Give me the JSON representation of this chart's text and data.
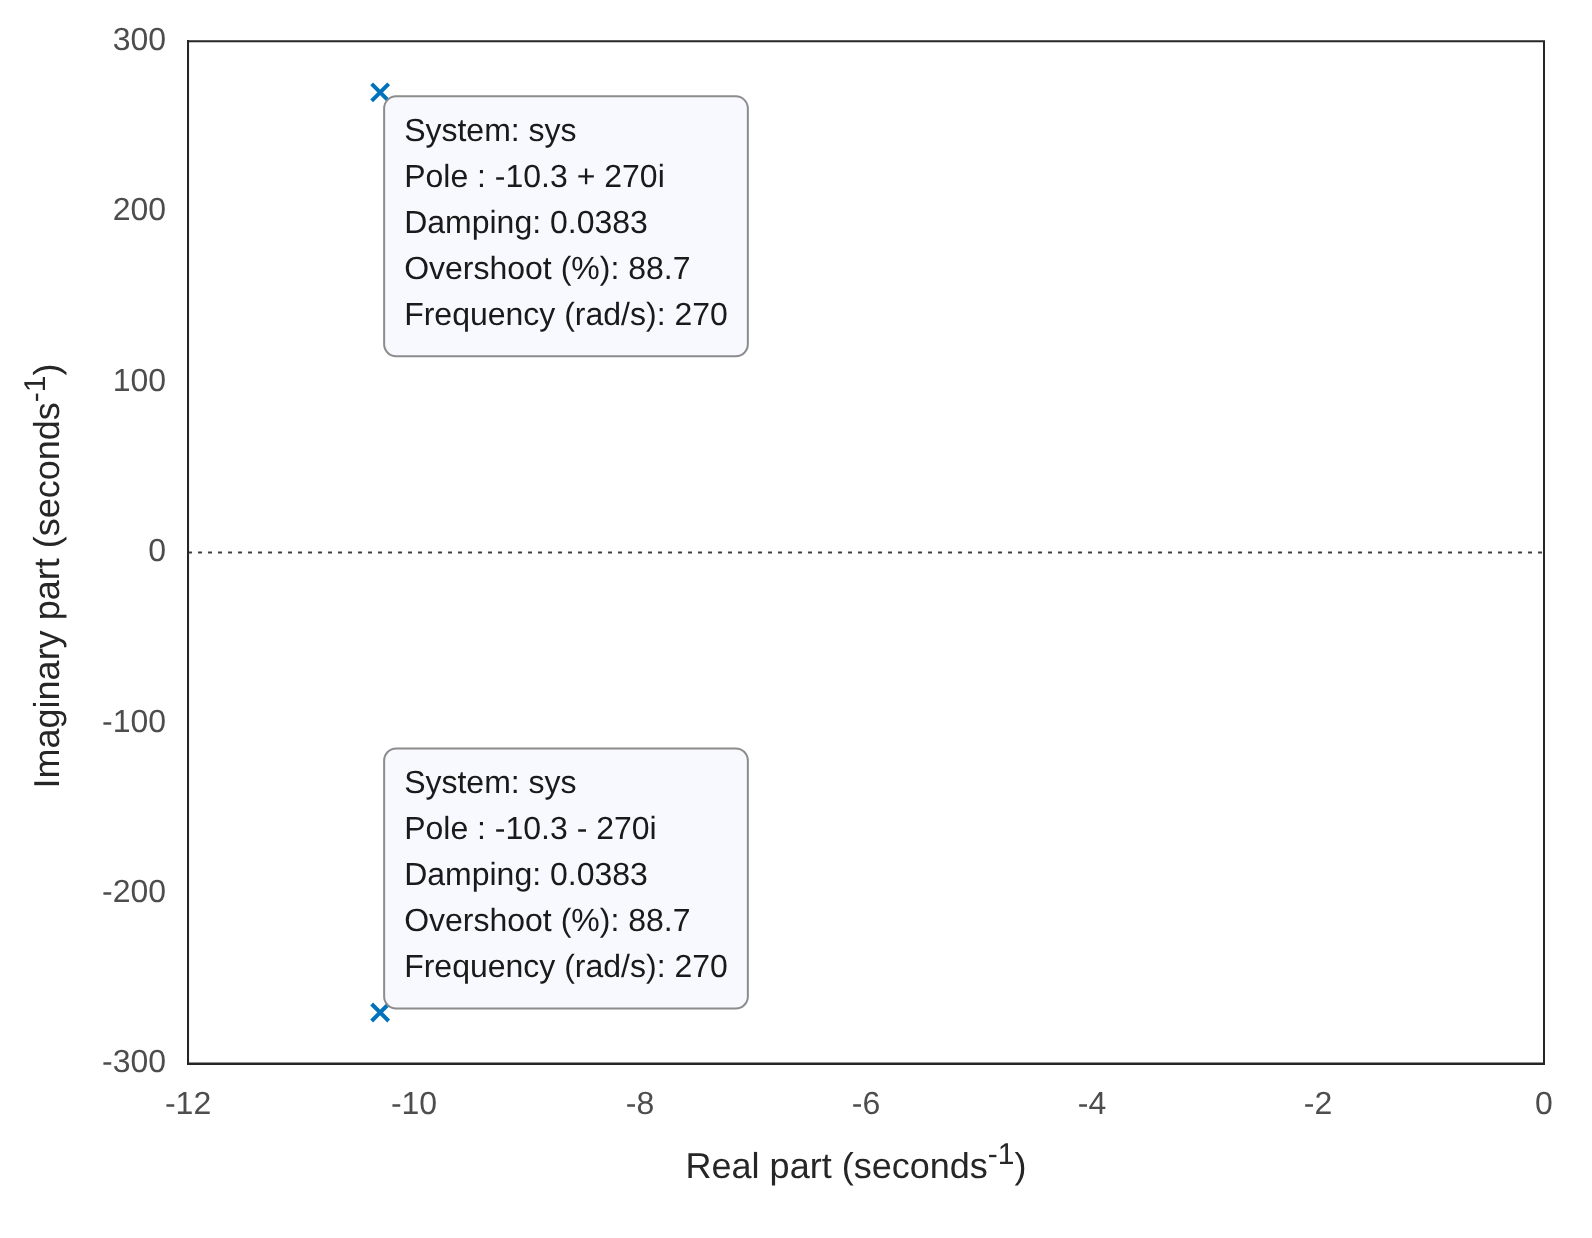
{
  "chart_data": {
    "type": "scatter",
    "xlabel": "Real part (seconds$^{-1}$)",
    "ylabel": "Imaginary part (seconds$^{-1}$)",
    "series": [
      {
        "color": "#0072bd",
        "x": [
          -10.3,
          -10.3
        ],
        "values": [
          270,
          -270
        ]
      }
    ],
    "xlim": [
      -12,
      0
    ],
    "xticks": [
      -12,
      -10,
      -8,
      -6,
      -4,
      -2,
      0
    ],
    "ylim": [
      -300,
      300
    ],
    "yticks": [
      -300,
      -200,
      -100,
      0,
      100,
      200,
      300
    ],
    "ref_lines": [
      {
        "axis": "y",
        "value": 0,
        "line_style": "dotted",
        "color": "#404040"
      }
    ],
    "annotations": [
      {
        "text": "System: sys\nPole : -10.3 + 270i\nDamping: 0.0383\nOvershoot (%): 88.7\nFrequency (rad/s): 270",
        "x": -10.3,
        "y": 270
      },
      {
        "text": "System: sys\nPole : -10.3 - 270i\nDamping: 0.0383\nOvershoot (%): 88.7\nFrequency (rad/s): 270",
        "x": -10.3,
        "y": -270
      }
    ],
    "grid": false,
    "legend": false,
    "marker": "cross"
  }
}
